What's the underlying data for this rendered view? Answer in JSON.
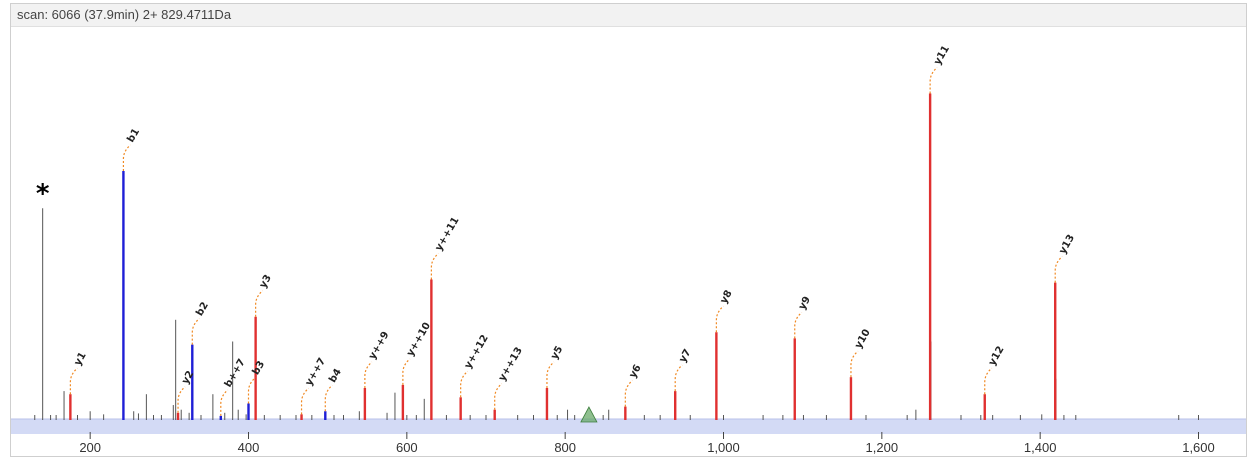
{
  "header": {
    "scan_label": "scan: 6066 (37.9min) 2+ 829.4711Da"
  },
  "colors": {
    "y_ion": "#e03030",
    "b_ion": "#1f1fd6",
    "unassigned": "#555555",
    "label_leader": "#f08a24",
    "precursor": "#6aaa6a",
    "baseline_band": "#d3daf5"
  },
  "chart_data": {
    "type": "bar",
    "title": "scan: 6066 (37.9min) 2+ 829.4711Da",
    "xlabel": "",
    "ylabel": "",
    "xlim": [
      100,
      1660
    ],
    "ylim": [
      0,
      100
    ],
    "grid": false,
    "xticks": [
      200,
      400,
      600,
      800,
      1000,
      1200,
      1400,
      1600
    ],
    "xtick_labels": [
      "200",
      "400",
      "600",
      "800",
      "1,000",
      "1,200",
      "1,400",
      "1,600"
    ],
    "annotations": [
      {
        "text": "*",
        "x": 140
      }
    ],
    "precursor_marker": {
      "x": 830
    },
    "series": [
      {
        "name": "y",
        "peaks": [
          {
            "label": "y1",
            "x": 175,
            "y": 8
          },
          {
            "label": "y2",
            "x": 311,
            "y": 2
          },
          {
            "label": "y3",
            "x": 409,
            "y": 33
          },
          {
            "label": "y++7",
            "x": 467,
            "y": 1.5
          },
          {
            "label": "y++9",
            "x": 547,
            "y": 10
          },
          {
            "label": "y++10",
            "x": 595,
            "y": 11
          },
          {
            "label": "y++11",
            "x": 631,
            "y": 45
          },
          {
            "label": "y++12",
            "x": 668,
            "y": 7
          },
          {
            "label": "y++13",
            "x": 711,
            "y": 3
          },
          {
            "label": "y5",
            "x": 777,
            "y": 10
          },
          {
            "label": "y6",
            "x": 876,
            "y": 4
          },
          {
            "label": "y7",
            "x": 939,
            "y": 9
          },
          {
            "label": "y8",
            "x": 991,
            "y": 28
          },
          {
            "label": "y9",
            "x": 1090,
            "y": 26
          },
          {
            "label": "y10",
            "x": 1161,
            "y": 13.5
          },
          {
            "label": "y11",
            "x": 1261,
            "y": 105
          },
          {
            "label": "y12",
            "x": 1330,
            "y": 8
          },
          {
            "label": "y13",
            "x": 1419,
            "y": 44
          }
        ]
      },
      {
        "name": "b",
        "peaks": [
          {
            "label": "b1",
            "x": 242,
            "y": 80
          },
          {
            "label": "b2",
            "x": 329,
            "y": 24
          },
          {
            "label": "b++7",
            "x": 365,
            "y": 1
          },
          {
            "label": "b3",
            "x": 400,
            "y": 5
          },
          {
            "label": "b4",
            "x": 497,
            "y": 2.5
          }
        ]
      },
      {
        "name": "unassigned",
        "peaks": [
          {
            "x": 140,
            "y": 68
          },
          {
            "x": 130,
            "y": 0.8
          },
          {
            "x": 150,
            "y": 0.8
          },
          {
            "x": 157,
            "y": 0.8
          },
          {
            "x": 167,
            "y": 9
          },
          {
            "x": 184,
            "y": 1.2
          },
          {
            "x": 200,
            "y": 2.5
          },
          {
            "x": 217,
            "y": 1.5
          },
          {
            "x": 255,
            "y": 2.5
          },
          {
            "x": 261,
            "y": 1.8
          },
          {
            "x": 271,
            "y": 8
          },
          {
            "x": 280,
            "y": 1.2
          },
          {
            "x": 290,
            "y": 1.2
          },
          {
            "x": 305,
            "y": 4.5
          },
          {
            "x": 308,
            "y": 32
          },
          {
            "x": 315,
            "y": 3
          },
          {
            "x": 325,
            "y": 2
          },
          {
            "x": 340,
            "y": 1.2
          },
          {
            "x": 355,
            "y": 8
          },
          {
            "x": 370,
            "y": 2
          },
          {
            "x": 380,
            "y": 25
          },
          {
            "x": 387,
            "y": 3
          },
          {
            "x": 397,
            "y": 1.5
          },
          {
            "x": 420,
            "y": 1.2
          },
          {
            "x": 440,
            "y": 1
          },
          {
            "x": 460,
            "y": 1
          },
          {
            "x": 480,
            "y": 1
          },
          {
            "x": 508,
            "y": 1.2
          },
          {
            "x": 520,
            "y": 1
          },
          {
            "x": 540,
            "y": 2.5
          },
          {
            "x": 575,
            "y": 2
          },
          {
            "x": 585,
            "y": 8.5
          },
          {
            "x": 600,
            "y": 1
          },
          {
            "x": 612,
            "y": 1.2
          },
          {
            "x": 622,
            "y": 6.5
          },
          {
            "x": 650,
            "y": 1
          },
          {
            "x": 680,
            "y": 1
          },
          {
            "x": 700,
            "y": 1
          },
          {
            "x": 740,
            "y": 1
          },
          {
            "x": 760,
            "y": 0.8
          },
          {
            "x": 790,
            "y": 0.8
          },
          {
            "x": 803,
            "y": 3
          },
          {
            "x": 812,
            "y": 1
          },
          {
            "x": 848,
            "y": 1
          },
          {
            "x": 855,
            "y": 3
          },
          {
            "x": 900,
            "y": 1
          },
          {
            "x": 920,
            "y": 0.8
          },
          {
            "x": 958,
            "y": 1.2
          },
          {
            "x": 1000,
            "y": 1
          },
          {
            "x": 1050,
            "y": 1
          },
          {
            "x": 1075,
            "y": 1
          },
          {
            "x": 1101,
            "y": 1.2
          },
          {
            "x": 1130,
            "y": 1
          },
          {
            "x": 1180,
            "y": 0.8
          },
          {
            "x": 1232,
            "y": 1.2
          },
          {
            "x": 1243,
            "y": 3
          },
          {
            "x": 1262,
            "y": 25
          },
          {
            "x": 1300,
            "y": 1
          },
          {
            "x": 1325,
            "y": 1
          },
          {
            "x": 1340,
            "y": 1
          },
          {
            "x": 1375,
            "y": 1
          },
          {
            "x": 1402,
            "y": 1.5
          },
          {
            "x": 1420,
            "y": 13
          },
          {
            "x": 1430,
            "y": 1
          },
          {
            "x": 1445,
            "y": 1
          },
          {
            "x": 1575,
            "y": 1
          },
          {
            "x": 1600,
            "y": 1
          }
        ]
      }
    ]
  }
}
